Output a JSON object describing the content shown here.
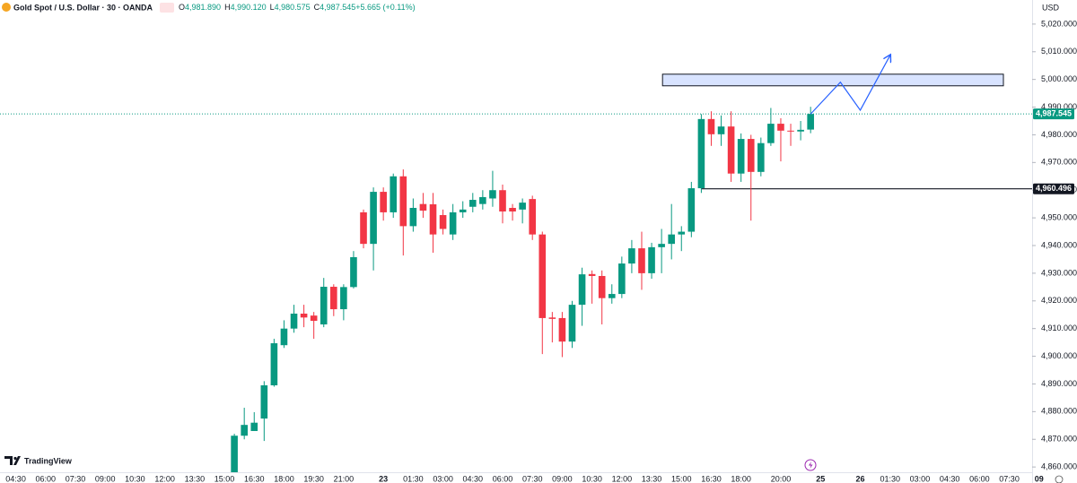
{
  "chart_data": {
    "type": "candlestick",
    "title": "Gold Spot / U.S. Dollar · 30 · OANDA",
    "readout": [
      {
        "key": "O",
        "value": "4,981.890"
      },
      {
        "key": "H",
        "value": "4,990.120"
      },
      {
        "key": "L",
        "value": "4,980.575"
      },
      {
        "key": "C",
        "value": "4,987.545"
      },
      {
        "key": "",
        "value": "+5.665 (+0.11%)"
      }
    ],
    "currency": "USD",
    "brand": "TradingView",
    "up_color": "#089981",
    "down_color": "#f23645",
    "categories": [
      null,
      "04:30",
      null,
      null,
      "06:00",
      null,
      null,
      "07:30",
      null,
      null,
      "09:00",
      null,
      null,
      "10:30",
      null,
      null,
      "12:00",
      null,
      null,
      "13:30",
      null,
      null,
      "15:00",
      null,
      null,
      "16:30",
      null,
      null,
      "18:00",
      null,
      null,
      "19:30",
      null,
      null,
      "21:00",
      null,
      null,
      null,
      "23",
      null,
      null,
      "01:30",
      null,
      null,
      "03:00",
      null,
      null,
      "04:30",
      null,
      null,
      "06:00",
      null,
      null,
      "07:30",
      null,
      null,
      "09:00",
      null,
      null,
      "10:30",
      null,
      null,
      "12:00",
      null,
      null,
      "13:30",
      null,
      null,
      "15:00",
      null,
      null,
      "16:30",
      null,
      null,
      "18:00",
      null,
      null,
      null,
      "20:00",
      null,
      null,
      null,
      "25",
      null,
      null,
      null,
      "26",
      null,
      null,
      "01:30",
      null,
      null,
      "03:00",
      null,
      null,
      "04:30",
      null,
      null,
      "06:00",
      null,
      null,
      "07:30",
      null,
      null,
      "09"
    ],
    "open": [
      null,
      null,
      null,
      null,
      null,
      null,
      null,
      null,
      null,
      null,
      null,
      null,
      null,
      null,
      null,
      null,
      null,
      null,
      null,
      null,
      null,
      null,
      null,
      4858,
      4871.3,
      4873,
      4877.5,
      4889.5,
      4904,
      4910,
      4915.4,
      4914.7,
      4911.5,
      4925.1,
      4917,
      4925,
      4952,
      4940.6,
      4959.4,
      4952,
      4965,
      4947,
      4955,
      4954.9,
      4951,
      4944,
      4952,
      4954,
      4955,
      4957,
      4960,
      4953.6,
      4953,
      4956.8,
      4944,
      4914,
      4913.8,
      4905.3,
      4918.6,
      4929.7,
      4929,
      4921,
      4922.5,
      4933.5,
      4939,
      4930,
      4939.4,
      4940.6,
      4944,
      4945,
      4960.7,
      4985.7,
      4980.2,
      4983,
      4966,
      4978.5,
      4966.6,
      4977,
      4984,
      4981.5,
      4981.2,
      4981.89,
      null,
      null,
      null,
      null,
      null,
      null,
      null,
      null,
      null,
      null,
      null,
      null,
      null,
      null,
      null,
      null,
      null,
      null,
      null,
      null,
      null,
      null,
      null
    ],
    "high": [
      null,
      null,
      null,
      null,
      null,
      null,
      null,
      null,
      null,
      null,
      null,
      null,
      null,
      null,
      null,
      null,
      null,
      null,
      null,
      null,
      null,
      null,
      null,
      4872,
      4881.4,
      4879.8,
      4891,
      4906.3,
      4913,
      4918.6,
      4918.6,
      4916,
      4928.3,
      4926,
      4926,
      4938,
      4953,
      4961,
      4961,
      4966,
      4967.5,
      4957,
      4959,
      4959,
      4953,
      4955,
      4956,
      4959,
      4960,
      4967,
      4962,
      4955,
      4957,
      4958,
      4945,
      4916,
      4916,
      4920,
      4932,
      4931,
      4931,
      4926,
      4936,
      4942,
      4945,
      4941,
      4946,
      4955,
      4947,
      4963,
      4987.5,
      4988.5,
      4987,
      4988.5,
      4980.5,
      4980,
      4979,
      4989.7,
      4986,
      4984,
      4985,
      4990.12,
      null,
      null,
      null,
      null,
      null,
      null,
      null,
      null,
      null,
      null,
      null,
      null,
      null,
      null,
      null,
      null,
      null,
      null,
      null,
      null,
      null,
      null,
      null
    ],
    "low": [
      null,
      null,
      null,
      null,
      null,
      null,
      null,
      null,
      null,
      null,
      null,
      null,
      null,
      null,
      null,
      null,
      null,
      null,
      null,
      null,
      null,
      null,
      null,
      4856,
      4870,
      4873,
      4869.4,
      4889,
      4903,
      4908.5,
      4910.5,
      4906.3,
      4910.5,
      4914.5,
      4913,
      4924.5,
      4939,
      4931,
      4949,
      4950,
      4936.4,
      4945,
      4950,
      4937.4,
      4944,
      4942,
      4950,
      4952,
      4953,
      4954,
      4948,
      4949,
      4948,
      4942,
      4900.8,
      4905,
      4899.7,
      4903,
      4911,
      4919,
      4911.5,
      4919,
      4921,
      4930,
      4924,
      4928,
      4930,
      4935,
      4938,
      4943,
      4959,
      4976,
      4976,
      4963,
      4963,
      4949,
      4965,
      4976,
      4970.4,
      4976,
      4978,
      4980.575,
      null,
      null,
      null,
      null,
      null,
      null,
      null,
      null,
      null,
      null,
      null,
      null,
      null,
      null,
      null,
      null,
      null,
      null,
      null,
      null,
      null,
      null,
      null
    ],
    "close": [
      null,
      null,
      null,
      null,
      null,
      null,
      null,
      null,
      null,
      null,
      null,
      null,
      null,
      null,
      null,
      null,
      null,
      null,
      null,
      null,
      null,
      null,
      null,
      4871.3,
      4875.2,
      4876,
      4889.5,
      4904.7,
      4910,
      4915.4,
      4914,
      4912.8,
      4925.1,
      4917,
      4925,
      4935.8,
      4940.6,
      4959.4,
      4952,
      4965,
      4947,
      4953.6,
      4952.6,
      4944,
      4946,
      4952,
      4953,
      4956.5,
      4957.5,
      4960,
      4952.3,
      4952.3,
      4955.5,
      4944,
      4913.8,
      4913.5,
      4905.3,
      4918.6,
      4929.6,
      4929,
      4921,
      4922.5,
      4933.5,
      4939,
      4930,
      4939.4,
      4940.6,
      4944,
      4945,
      4960.7,
      4985.7,
      4980.2,
      4983,
      4966,
      4978.5,
      4966.6,
      4977,
      4984,
      4981.5,
      4981.2,
      4981.8,
      4987.545,
      null,
      null,
      null,
      null,
      null,
      null,
      null,
      null,
      null,
      null,
      null,
      null,
      null,
      null,
      null,
      null,
      null,
      null,
      null,
      null,
      null,
      null,
      null
    ],
    "ylim": [
      4858.1,
      5028.7
    ],
    "yticks": [
      {
        "value": 4860,
        "label": "4,860.000"
      },
      {
        "value": 4870,
        "label": "4,870.000"
      },
      {
        "value": 4880,
        "label": "4,880.000"
      },
      {
        "value": 4890,
        "label": "4,890.000"
      },
      {
        "value": 4900,
        "label": "4,900.000"
      },
      {
        "value": 4910,
        "label": "4,910.000"
      },
      {
        "value": 4920,
        "label": "4,920.000"
      },
      {
        "value": 4930,
        "label": "4,930.000"
      },
      {
        "value": 4940,
        "label": "4,940.000"
      },
      {
        "value": 4950,
        "label": "4,950.000"
      },
      {
        "value": 4960,
        "label": "4,960.000"
      },
      {
        "value": 4970,
        "label": "4,970.000"
      },
      {
        "value": 4980,
        "label": "4,980.000"
      },
      {
        "value": 4990,
        "label": "4,990.000"
      },
      {
        "value": 5000,
        "label": "5,000.000"
      },
      {
        "value": 5010,
        "label": "5,010.000"
      },
      {
        "value": 5020,
        "label": "5,020.000"
      }
    ],
    "last_price": {
      "value": 4987.545,
      "label": "4,987.545"
    },
    "level": {
      "value": 4960.496,
      "label": "4,960.496"
    },
    "zone": {
      "low": 4997.7,
      "high": 5001.9
    },
    "projection": [
      4987.5,
      4999,
      4988.9,
      5008.7
    ]
  }
}
